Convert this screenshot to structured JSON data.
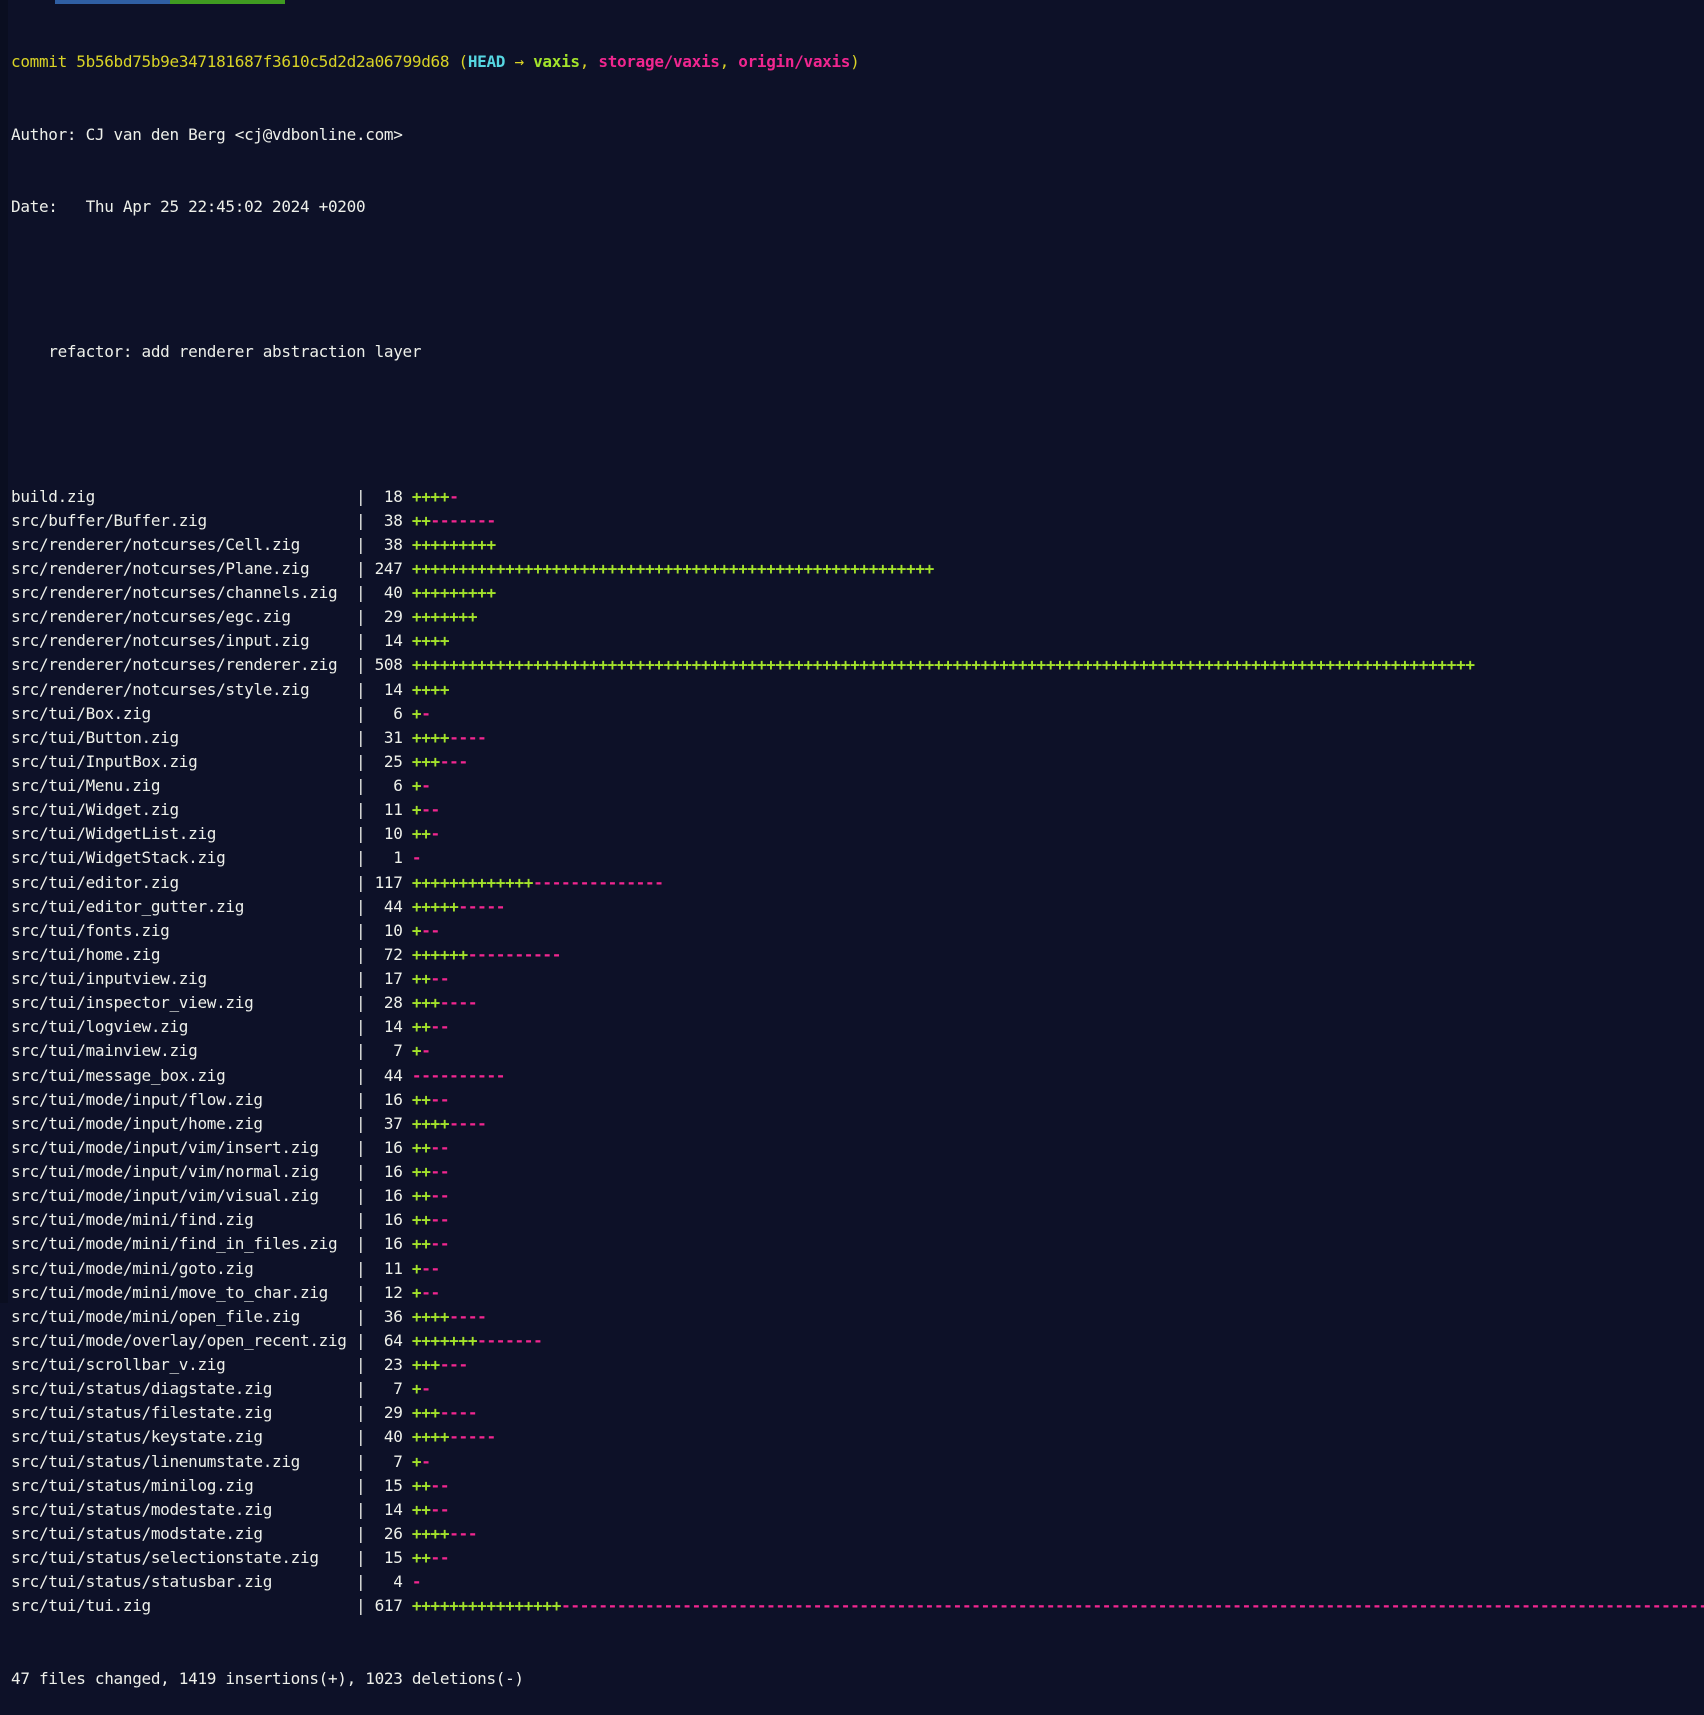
{
  "colors": {
    "background": "#0d1128",
    "foreground": "#eef0ea",
    "yellow": "#d9d326",
    "cyan": "#56d7e2",
    "green": "#a3e22b",
    "magenta": "#f0268f",
    "topbar_blue": "#2f5fa3",
    "topbar_green": "#3f9b21"
  },
  "commit_line": {
    "label": "commit ",
    "hash": "5b56bd75b9e347181687f3610c5d2d2a06799d68",
    "decoration_open": " (",
    "head": "HEAD",
    "arrow": " → ",
    "branch_local": "vaxis",
    "separator": ", ",
    "branch_storage": "storage/vaxis",
    "branch_origin": "origin/vaxis",
    "decoration_close": ")"
  },
  "author_line": "Author: CJ van den Berg <cj@vdbonline.com>",
  "date_line": "Date:   Thu Apr 25 22:45:02 2024 +0200",
  "commit_message": "    refactor: add renderer abstraction layer",
  "diffstat": {
    "files": [
      {
        "name": "build.zig",
        "changes": 18,
        "plus": 4,
        "minus": 1
      },
      {
        "name": "src/buffer/Buffer.zig",
        "changes": 38,
        "plus": 2,
        "minus": 7
      },
      {
        "name": "src/renderer/notcurses/Cell.zig",
        "changes": 38,
        "plus": 9,
        "minus": 0
      },
      {
        "name": "src/renderer/notcurses/Plane.zig",
        "changes": 247,
        "plus": 56,
        "minus": 0
      },
      {
        "name": "src/renderer/notcurses/channels.zig",
        "changes": 40,
        "plus": 9,
        "minus": 0
      },
      {
        "name": "src/renderer/notcurses/egc.zig",
        "changes": 29,
        "plus": 7,
        "minus": 0
      },
      {
        "name": "src/renderer/notcurses/input.zig",
        "changes": 14,
        "plus": 4,
        "minus": 0
      },
      {
        "name": "src/renderer/notcurses/renderer.zig",
        "changes": 508,
        "plus": 114,
        "minus": 0
      },
      {
        "name": "src/renderer/notcurses/style.zig",
        "changes": 14,
        "plus": 4,
        "minus": 0
      },
      {
        "name": "src/tui/Box.zig",
        "changes": 6,
        "plus": 1,
        "minus": 1
      },
      {
        "name": "src/tui/Button.zig",
        "changes": 31,
        "plus": 4,
        "minus": 4
      },
      {
        "name": "src/tui/InputBox.zig",
        "changes": 25,
        "plus": 3,
        "minus": 3
      },
      {
        "name": "src/tui/Menu.zig",
        "changes": 6,
        "plus": 1,
        "minus": 1
      },
      {
        "name": "src/tui/Widget.zig",
        "changes": 11,
        "plus": 1,
        "minus": 2
      },
      {
        "name": "src/tui/WidgetList.zig",
        "changes": 10,
        "plus": 2,
        "minus": 1
      },
      {
        "name": "src/tui/WidgetStack.zig",
        "changes": 1,
        "plus": 0,
        "minus": 1
      },
      {
        "name": "src/tui/editor.zig",
        "changes": 117,
        "plus": 13,
        "minus": 14
      },
      {
        "name": "src/tui/editor_gutter.zig",
        "changes": 44,
        "plus": 5,
        "minus": 5
      },
      {
        "name": "src/tui/fonts.zig",
        "changes": 10,
        "plus": 1,
        "minus": 2
      },
      {
        "name": "src/tui/home.zig",
        "changes": 72,
        "plus": 6,
        "minus": 10
      },
      {
        "name": "src/tui/inputview.zig",
        "changes": 17,
        "plus": 2,
        "minus": 2
      },
      {
        "name": "src/tui/inspector_view.zig",
        "changes": 28,
        "plus": 3,
        "minus": 4
      },
      {
        "name": "src/tui/logview.zig",
        "changes": 14,
        "plus": 2,
        "minus": 2
      },
      {
        "name": "src/tui/mainview.zig",
        "changes": 7,
        "plus": 1,
        "minus": 1
      },
      {
        "name": "src/tui/message_box.zig",
        "changes": 44,
        "plus": 0,
        "minus": 10
      },
      {
        "name": "src/tui/mode/input/flow.zig",
        "changes": 16,
        "plus": 2,
        "minus": 2
      },
      {
        "name": "src/tui/mode/input/home.zig",
        "changes": 37,
        "plus": 4,
        "minus": 4
      },
      {
        "name": "src/tui/mode/input/vim/insert.zig",
        "changes": 16,
        "plus": 2,
        "minus": 2
      },
      {
        "name": "src/tui/mode/input/vim/normal.zig",
        "changes": 16,
        "plus": 2,
        "minus": 2
      },
      {
        "name": "src/tui/mode/input/vim/visual.zig",
        "changes": 16,
        "plus": 2,
        "minus": 2
      },
      {
        "name": "src/tui/mode/mini/find.zig",
        "changes": 16,
        "plus": 2,
        "minus": 2
      },
      {
        "name": "src/tui/mode/mini/find_in_files.zig",
        "changes": 16,
        "plus": 2,
        "minus": 2
      },
      {
        "name": "src/tui/mode/mini/goto.zig",
        "changes": 11,
        "plus": 1,
        "minus": 2
      },
      {
        "name": "src/tui/mode/mini/move_to_char.zig",
        "changes": 12,
        "plus": 1,
        "minus": 2
      },
      {
        "name": "src/tui/mode/mini/open_file.zig",
        "changes": 36,
        "plus": 4,
        "minus": 4
      },
      {
        "name": "src/tui/mode/overlay/open_recent.zig",
        "changes": 64,
        "plus": 7,
        "minus": 7
      },
      {
        "name": "src/tui/scrollbar_v.zig",
        "changes": 23,
        "plus": 3,
        "minus": 3
      },
      {
        "name": "src/tui/status/diagstate.zig",
        "changes": 7,
        "plus": 1,
        "minus": 1
      },
      {
        "name": "src/tui/status/filestate.zig",
        "changes": 29,
        "plus": 3,
        "minus": 4
      },
      {
        "name": "src/tui/status/keystate.zig",
        "changes": 40,
        "plus": 4,
        "minus": 5
      },
      {
        "name": "src/tui/status/linenumstate.zig",
        "changes": 7,
        "plus": 1,
        "minus": 1
      },
      {
        "name": "src/tui/status/minilog.zig",
        "changes": 15,
        "plus": 2,
        "minus": 2
      },
      {
        "name": "src/tui/status/modestate.zig",
        "changes": 14,
        "plus": 2,
        "minus": 2
      },
      {
        "name": "src/tui/status/modstate.zig",
        "changes": 26,
        "plus": 4,
        "minus": 3
      },
      {
        "name": "src/tui/status/selectionstate.zig",
        "changes": 15,
        "plus": 2,
        "minus": 2
      },
      {
        "name": "src/tui/status/statusbar.zig",
        "changes": 4,
        "plus": 0,
        "minus": 1
      },
      {
        "name": "src/tui/tui.zig",
        "changes": 617,
        "plus": 16,
        "minus": 123
      }
    ],
    "summary": "47 files changed, 1419 insertions(+), 1023 deletions(-)"
  }
}
